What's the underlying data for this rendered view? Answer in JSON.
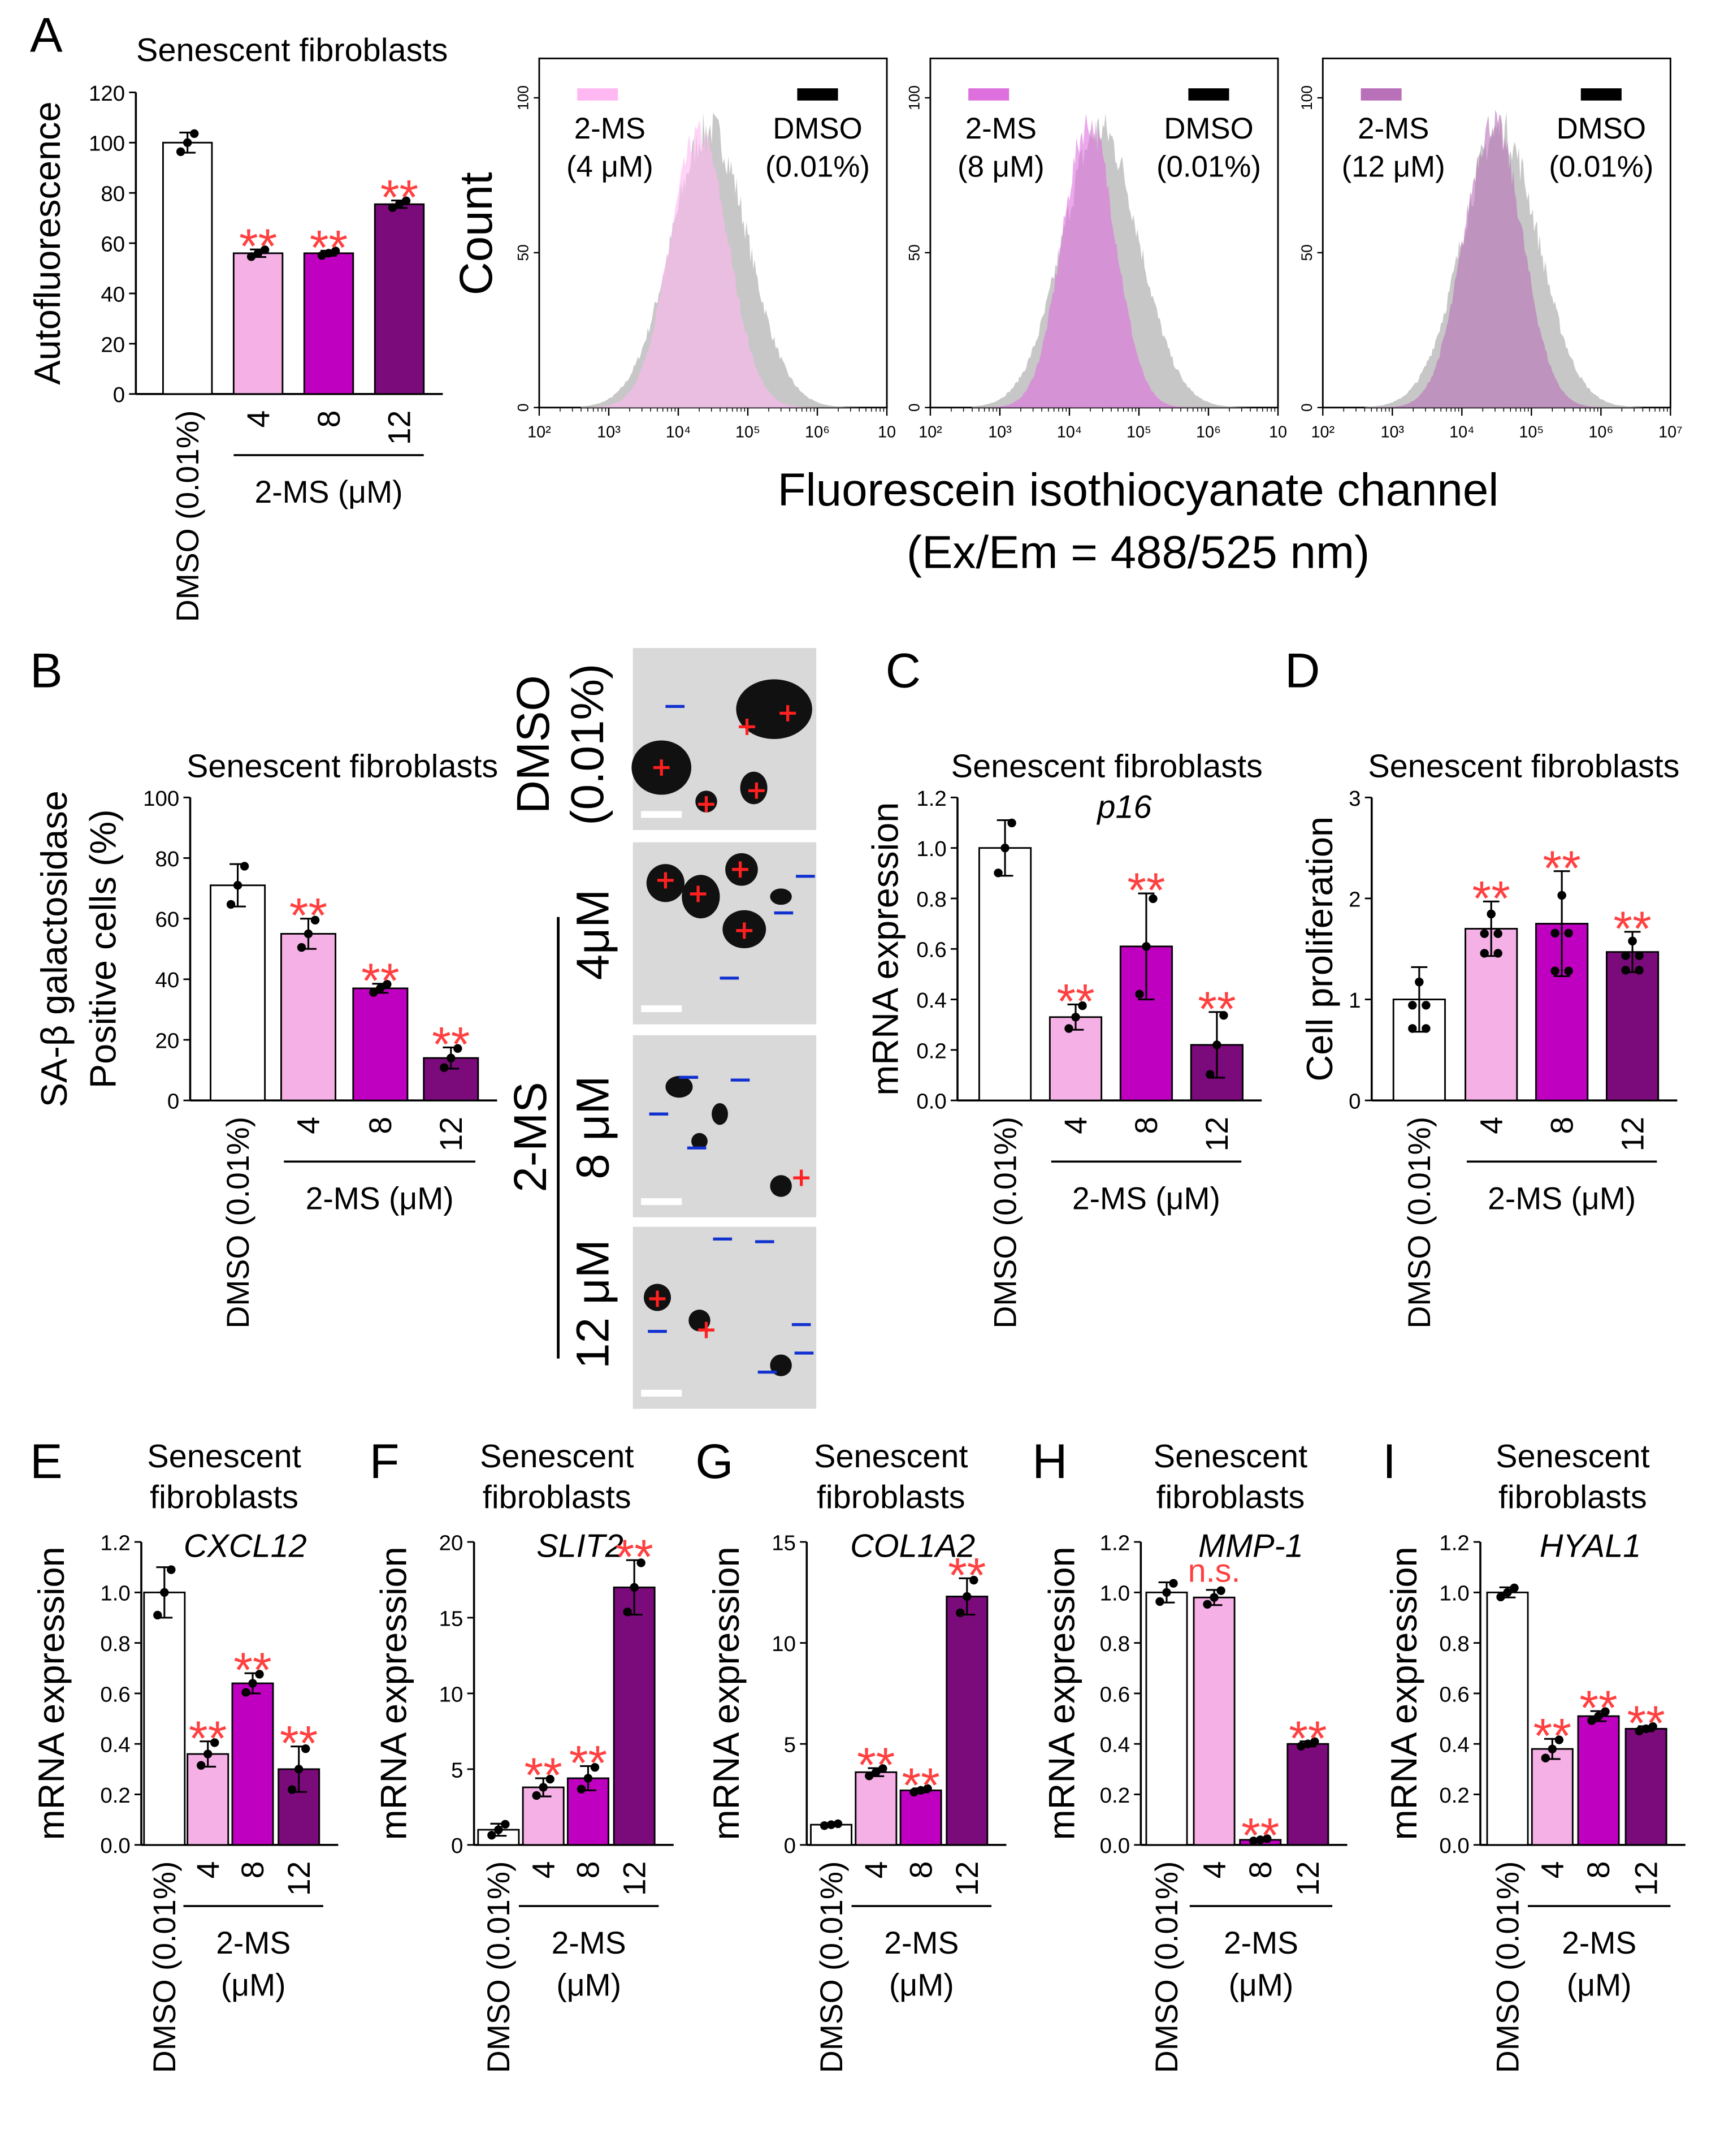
{
  "figure": {
    "letters": [
      "A",
      "B",
      "C",
      "D",
      "E",
      "F",
      "G",
      "H",
      "I"
    ],
    "histogram_ylabel": "Count",
    "histogram_xlabel_lines": [
      "Fluorescein isothiocyanate channel",
      "(Ex/Em = 488/525 nm)"
    ],
    "micrograph_labels": {
      "dmso": [
        "DMSO",
        "(0.01%)"
      ],
      "group": "2-MS",
      "rows": [
        "4μM",
        "8 μM",
        "12 μM"
      ]
    }
  },
  "colors": {
    "dmso": "#ffffff",
    "ms4": "#f5b0e6",
    "ms8": "#c000c0",
    "ms12": "#7b0a7b",
    "significance": "#ff4040",
    "hist_dmso": "#bdbdbd"
  },
  "histograms": {
    "type": "histogram",
    "x_scale": "log",
    "xlim_log10": [
      2,
      7
    ],
    "x_ticks": [
      "10²",
      "10³",
      "10⁴",
      "10⁵",
      "10⁶",
      "10"
    ],
    "x_ticks_last": "10⁷",
    "y_ticks": [
      "0",
      "50",
      "100"
    ],
    "ylim": [
      0,
      110
    ],
    "panels": [
      {
        "treated_label": [
          "2-MS",
          "(4 μM)"
        ],
        "control_label": [
          "DMSO",
          "(0.01%)"
        ],
        "treated_color": "#ffb8f2",
        "treated_peak_log10": 4.3,
        "treated_peak_count": 88,
        "treated_sd_log10": 0.42,
        "control_peak_log10": 4.45,
        "control_peak_count": 90,
        "control_sd_log10": 0.55
      },
      {
        "treated_label": [
          "2-MS",
          "(8 μM)"
        ],
        "control_label": [
          "DMSO",
          "(0.01%)"
        ],
        "treated_color": "#dd70dd",
        "treated_peak_log10": 4.28,
        "treated_peak_count": 92,
        "treated_sd_log10": 0.38,
        "control_peak_log10": 4.45,
        "control_peak_count": 90,
        "control_sd_log10": 0.55
      },
      {
        "treated_label": [
          "2-MS",
          "(12 μM)"
        ],
        "control_label": [
          "DMSO",
          "(0.01%)"
        ],
        "treated_color": "#b870b8",
        "treated_peak_log10": 4.45,
        "treated_peak_count": 92,
        "treated_sd_log10": 0.42,
        "control_peak_log10": 4.55,
        "control_peak_count": 90,
        "control_sd_log10": 0.55
      }
    ]
  },
  "chart_data": [
    {
      "id": "A",
      "type": "bar",
      "title": "Senescent fibroblasts",
      "subtitle": "",
      "ylabel": "Autofluorescence",
      "categories": [
        "DMSO (0.01%)",
        "4",
        "8",
        "12"
      ],
      "group_label": "2-MS (μM)",
      "values": [
        100,
        56,
        56,
        75.5
      ],
      "errors": [
        4,
        1.5,
        1,
        1.5
      ],
      "n": 3,
      "significance": [
        "",
        "**",
        "**",
        "**"
      ],
      "ylim": [
        0,
        120
      ],
      "yticks": [
        0,
        20,
        40,
        60,
        80,
        100,
        120
      ]
    },
    {
      "id": "B",
      "type": "bar",
      "title": "Senescent fibroblasts",
      "subtitle": "",
      "ylabel": [
        "SA-β galactosidase",
        "Positive cells (%)"
      ],
      "categories": [
        "DMSO (0.01%)",
        "4",
        "8",
        "12"
      ],
      "group_label": "2-MS (μM)",
      "values": [
        71,
        55,
        37,
        14
      ],
      "errors": [
        7,
        5,
        1.5,
        3.5
      ],
      "n": 3,
      "significance": [
        "",
        "**",
        "**",
        "**"
      ],
      "ylim": [
        0,
        100
      ],
      "yticks": [
        0,
        20,
        40,
        60,
        80,
        100
      ]
    },
    {
      "id": "C",
      "type": "bar",
      "title": "Senescent fibroblasts",
      "subtitle": "p16",
      "ylabel": "mRNA expression",
      "categories": [
        "DMSO (0.01%)",
        "4",
        "8",
        "12"
      ],
      "group_label": "2-MS (μM)",
      "values": [
        1.0,
        0.33,
        0.61,
        0.22
      ],
      "errors": [
        0.11,
        0.05,
        0.21,
        0.13
      ],
      "n": 3,
      "significance": [
        "",
        "**",
        "**",
        "**"
      ],
      "ylim": [
        0,
        1.2
      ],
      "yticks": [
        0.0,
        0.2,
        0.4,
        0.6,
        0.8,
        1.0,
        1.2
      ]
    },
    {
      "id": "D",
      "type": "bar",
      "title": "Senescent fibroblasts",
      "subtitle": "",
      "ylabel": "Cell proliferation",
      "categories": [
        "DMSO (0.01%)",
        "4",
        "8",
        "12"
      ],
      "group_label": "2-MS (μM)",
      "values": [
        1.0,
        1.7,
        1.75,
        1.47
      ],
      "errors": [
        0.32,
        0.27,
        0.52,
        0.2
      ],
      "n": 6,
      "significance": [
        "",
        "**",
        "**",
        "**"
      ],
      "ylim": [
        0,
        3
      ],
      "yticks": [
        0,
        1,
        2,
        3
      ]
    },
    {
      "id": "E",
      "type": "bar",
      "title": "Senescent fibroblasts",
      "subtitle": "CXCL12",
      "ylabel": "mRNA expression",
      "categories": [
        "DMSO (0.01%)",
        "4",
        "8",
        "12"
      ],
      "group_label": "2-MS (μM)",
      "values": [
        1.0,
        0.36,
        0.64,
        0.3
      ],
      "errors": [
        0.1,
        0.05,
        0.04,
        0.09
      ],
      "n": 3,
      "significance": [
        "",
        "**",
        "**",
        "**"
      ],
      "ylim": [
        0,
        1.2
      ],
      "yticks": [
        0.0,
        0.2,
        0.4,
        0.6,
        0.8,
        1.0,
        1.2
      ]
    },
    {
      "id": "F",
      "type": "bar",
      "title": "Senescent fibroblasts",
      "subtitle": "SLIT2",
      "ylabel": "mRNA expression",
      "categories": [
        "DMSO (0.01%)",
        "4",
        "8",
        "12"
      ],
      "group_label": "2-MS (μM)",
      "values": [
        1.0,
        3.8,
        4.4,
        17.0
      ],
      "errors": [
        0.4,
        0.6,
        0.8,
        1.8
      ],
      "n": 3,
      "significance": [
        "",
        "**",
        "**",
        "**"
      ],
      "ylim": [
        0,
        20
      ],
      "yticks": [
        0,
        5,
        10,
        15,
        20
      ]
    },
    {
      "id": "G",
      "type": "bar",
      "title": "Senescent fibroblasts",
      "subtitle": "COL1A2",
      "ylabel": "mRNA expression",
      "categories": [
        "DMSO (0.01%)",
        "4",
        "8",
        "12"
      ],
      "group_label": "2-MS (μM)",
      "values": [
        1.0,
        3.6,
        2.7,
        12.3
      ],
      "errors": [
        0.05,
        0.2,
        0.1,
        0.9
      ],
      "n": 3,
      "significance": [
        "",
        "**",
        "**",
        "**"
      ],
      "ylim": [
        0,
        15
      ],
      "yticks": [
        0,
        5,
        10,
        15
      ]
    },
    {
      "id": "H",
      "type": "bar",
      "title": "Senescent fibroblasts",
      "subtitle": "MMP-1",
      "ylabel": "mRNA expression",
      "categories": [
        "DMSO (0.01%)",
        "4",
        "8",
        "12"
      ],
      "group_label": "2-MS (μM)",
      "values": [
        1.0,
        0.98,
        0.02,
        0.4
      ],
      "errors": [
        0.04,
        0.03,
        0.005,
        0.01
      ],
      "n": 3,
      "significance": [
        "",
        "n.s.",
        "**",
        "**"
      ],
      "ylim": [
        0,
        1.2
      ],
      "yticks": [
        0.0,
        0.2,
        0.4,
        0.6,
        0.8,
        1.0,
        1.2
      ]
    },
    {
      "id": "I",
      "type": "bar",
      "title": "Senescent fibroblasts",
      "subtitle": "HYAL1",
      "ylabel": "mRNA expression",
      "categories": [
        "DMSO (0.01%)",
        "4",
        "8",
        "12"
      ],
      "group_label": "2-MS (μM)",
      "values": [
        1.0,
        0.38,
        0.51,
        0.46
      ],
      "errors": [
        0.02,
        0.04,
        0.02,
        0.01
      ],
      "n": 3,
      "significance": [
        "",
        "**",
        "**",
        "**"
      ],
      "ylim": [
        0,
        1.2
      ],
      "yticks": [
        0.0,
        0.2,
        0.4,
        0.6,
        0.8,
        1.0,
        1.2
      ]
    }
  ]
}
